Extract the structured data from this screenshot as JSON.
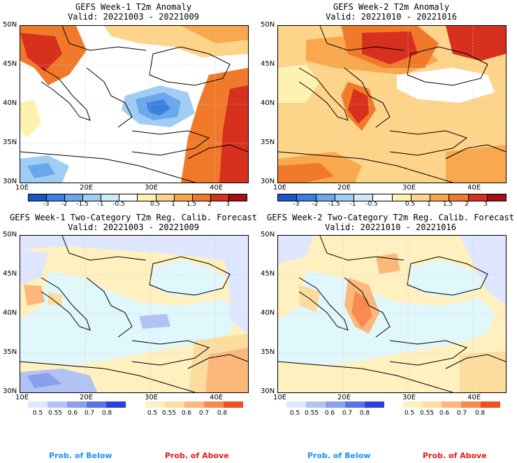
{
  "panels": {
    "p1": {
      "title": "GEFS Week-1 T2m Anomaly",
      "valid": "Valid: 20221003 - 20221009"
    },
    "p2": {
      "title": "GEFS Week-2 T2m Anomaly",
      "valid": "Valid: 20221010 - 20221016"
    },
    "p3": {
      "title": "GEFS Week-1 Two-Category T2m Reg. Calib. Forecast",
      "valid": "Valid: 20221003 - 20221009"
    },
    "p4": {
      "title": "GEFS Week-2 Two-Category T2m Reg. Calib. Forecast",
      "valid": "Valid: 20221010 - 20221016"
    }
  },
  "axes": {
    "lat": [
      "50N",
      "45N",
      "40N",
      "35N",
      "30N"
    ],
    "lon": [
      "10E",
      "20E",
      "30E",
      "40E"
    ]
  },
  "anomaly_colorbar": {
    "labels": [
      "-3",
      "-2",
      "-1.5",
      "-1",
      "-0.5",
      "0.5",
      "1",
      "1.5",
      "2",
      "3"
    ],
    "colors": [
      "#1a55c8",
      "#3d7fe0",
      "#6aa8ee",
      "#9fcdf4",
      "#cfe9fb",
      "#ffffff",
      "#fff2b0",
      "#fdd48a",
      "#f9a84d",
      "#f07a2a",
      "#d7301f",
      "#a50f15"
    ]
  },
  "prob_below": {
    "label": "Prob. of Below",
    "ticks": [
      "0.5",
      "0.55",
      "0.6",
      "0.7",
      "0.8"
    ],
    "colors": [
      "#dfe6ff",
      "#b3c2f5",
      "#8aa0ee",
      "#5a73e6",
      "#2a40e0"
    ],
    "label_color": "#1e90ff"
  },
  "prob_above": {
    "label": "Prob. of Above",
    "ticks": [
      "0.5",
      "0.55",
      "0.6",
      "0.7",
      "0.8"
    ],
    "colors": [
      "#fff0c0",
      "#fddca0",
      "#fbb87a",
      "#f78a50",
      "#f05020"
    ],
    "label_color": "#e41a1c"
  }
}
